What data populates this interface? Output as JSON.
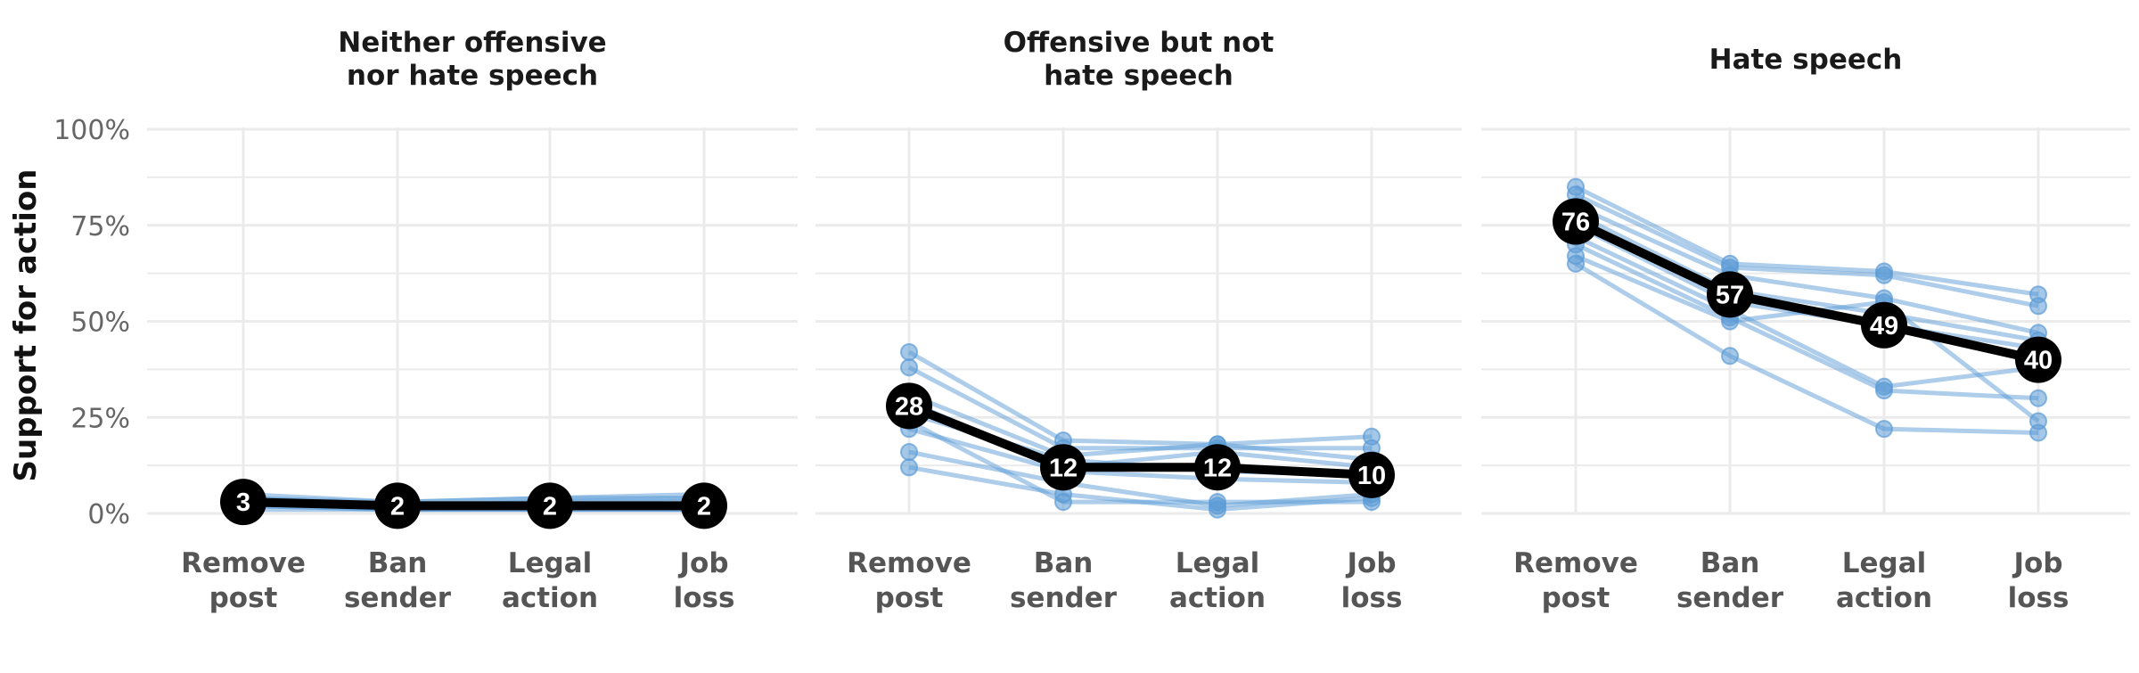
{
  "chart_data": {
    "type": "line",
    "ylabel": "Support for action",
    "ylim": [
      0,
      100
    ],
    "yticks": [
      0,
      25,
      50,
      75,
      100
    ],
    "ytick_labels": [
      "0%",
      "25%",
      "50%",
      "75%",
      "100%"
    ],
    "categories": [
      [
        "Remove",
        "post"
      ],
      [
        "Ban",
        "sender"
      ],
      [
        "Legal",
        "action"
      ],
      [
        "Job",
        "loss"
      ]
    ],
    "grid": true,
    "colors": {
      "individual": "#5b9bd5",
      "mean": "#000000",
      "label_text": "#ffffff",
      "grid": "#ebebeb"
    },
    "panels": [
      {
        "title": [
          "Neither offensive",
          "nor hate speech"
        ],
        "mean": [
          3,
          2,
          2,
          2
        ],
        "mean_labels": [
          "3",
          "2",
          "2",
          "2"
        ],
        "series": [
          {
            "values": [
              5,
              3,
              4,
              5
            ]
          },
          {
            "values": [
              4,
              2,
              3,
              4
            ]
          },
          {
            "values": [
              3,
              2,
              3,
              3
            ]
          },
          {
            "values": [
              3,
              1,
              2,
              2
            ]
          },
          {
            "values": [
              2,
              1,
              1,
              1
            ]
          },
          {
            "values": [
              2,
              1,
              1,
              1
            ]
          },
          {
            "values": [
              1,
              1,
              1,
              1
            ]
          },
          {
            "values": [
              4,
              3,
              4,
              4
            ]
          },
          {
            "values": [
              3,
              2,
              2,
              2
            ]
          }
        ]
      },
      {
        "title": [
          "Offensive but not",
          "hate speech"
        ],
        "mean": [
          28,
          12,
          12,
          10
        ],
        "mean_labels": [
          "28",
          "12",
          "12",
          "10"
        ],
        "series": [
          {
            "values": [
              42,
              19,
              18,
              20
            ]
          },
          {
            "values": [
              38,
              17,
              17,
              17
            ]
          },
          {
            "values": [
              31,
              15,
              18,
              14
            ]
          },
          {
            "values": [
              29,
              12,
              16,
              12
            ]
          },
          {
            "values": [
              26,
              14,
              11,
              10
            ]
          },
          {
            "values": [
              22,
              11,
              9,
              8
            ]
          },
          {
            "values": [
              16,
              8,
              2,
              5
            ]
          },
          {
            "values": [
              12,
              5,
              1,
              4
            ]
          },
          {
            "values": [
              24,
              3,
              3,
              3
            ]
          }
        ]
      },
      {
        "title": [
          "Hate speech"
        ],
        "mean": [
          76,
          57,
          49,
          40
        ],
        "mean_labels": [
          "76",
          "57",
          "49",
          "40"
        ],
        "series": [
          {
            "values": [
              85,
              65,
              63,
              57
            ]
          },
          {
            "values": [
              83,
              64,
              62,
              54
            ]
          },
          {
            "values": [
              80,
              62,
              56,
              47
            ]
          },
          {
            "values": [
              78,
              58,
              52,
              45
            ]
          },
          {
            "values": [
              75,
              55,
              49,
              43
            ]
          },
          {
            "values": [
              72,
              53,
              33,
              38
            ]
          },
          {
            "values": [
              70,
              51,
              32,
              30
            ]
          },
          {
            "values": [
              67,
              50,
              55,
              24
            ]
          },
          {
            "values": [
              65,
              41,
              22,
              21
            ]
          }
        ]
      }
    ]
  }
}
